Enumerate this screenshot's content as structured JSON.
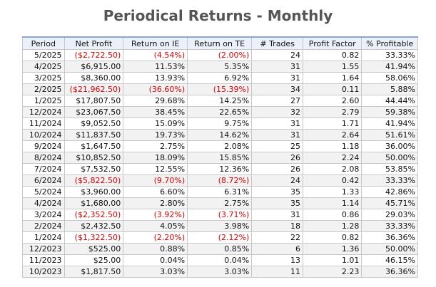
{
  "title": "Periodical Returns - Monthly",
  "colors": {
    "negative": "#e00000",
    "header_bg": "#eaf1fb",
    "title": "#555555"
  },
  "table": {
    "headers": [
      "Period",
      "Net Profit",
      "Return on IE",
      "Return on TE",
      "# Trades",
      "Profit Factor",
      "% Profitable"
    ],
    "rows": [
      [
        "5/2025",
        "($2,722.50)",
        "(4.54%)",
        "(2.00%)",
        "24",
        "0.82",
        "33.33%"
      ],
      [
        "4/2025",
        "$6,915.00",
        "11.53%",
        "5.35%",
        "31",
        "1.55",
        "41.94%"
      ],
      [
        "3/2025",
        "$8,360.00",
        "13.93%",
        "6.92%",
        "31",
        "1.64",
        "58.06%"
      ],
      [
        "2/2025",
        "($21,962.50)",
        "(36.60%)",
        "(15.39%)",
        "34",
        "0.11",
        "5.88%"
      ],
      [
        "1/2025",
        "$17,807.50",
        "29.68%",
        "14.25%",
        "27",
        "2.60",
        "44.44%"
      ],
      [
        "12/2024",
        "$23,067.50",
        "38.45%",
        "22.65%",
        "32",
        "2.79",
        "59.38%"
      ],
      [
        "11/2024",
        "$9,052.50",
        "15.09%",
        "9.75%",
        "31",
        "1.71",
        "41.94%"
      ],
      [
        "10/2024",
        "$11,837.50",
        "19.73%",
        "14.62%",
        "31",
        "2.64",
        "51.61%"
      ],
      [
        "9/2024",
        "$1,647.50",
        "2.75%",
        "2.08%",
        "25",
        "1.18",
        "36.00%"
      ],
      [
        "8/2024",
        "$10,852.50",
        "18.09%",
        "15.85%",
        "26",
        "2.24",
        "50.00%"
      ],
      [
        "7/2024",
        "$7,532.50",
        "12.55%",
        "12.36%",
        "26",
        "2.08",
        "53.85%"
      ],
      [
        "6/2024",
        "($5,822.50)",
        "(9.70%)",
        "(8.72%)",
        "24",
        "0.42",
        "33.33%"
      ],
      [
        "5/2024",
        "$3,960.00",
        "6.60%",
        "6.31%",
        "35",
        "1.33",
        "42.86%"
      ],
      [
        "4/2024",
        "$1,680.00",
        "2.80%",
        "2.75%",
        "35",
        "1.14",
        "45.71%"
      ],
      [
        "3/2024",
        "($2,352.50)",
        "(3.92%)",
        "(3.71%)",
        "31",
        "0.86",
        "29.03%"
      ],
      [
        "2/2024",
        "$2,432.50",
        "4.05%",
        "3.98%",
        "18",
        "1.28",
        "33.33%"
      ],
      [
        "1/2024",
        "($1,322.50)",
        "(2.20%)",
        "(2.12%)",
        "22",
        "0.82",
        "36.36%"
      ],
      [
        "12/2023",
        "$525.00",
        "0.88%",
        "0.85%",
        "6",
        "1.36",
        "50.00%"
      ],
      [
        "11/2023",
        "$25.00",
        "0.04%",
        "0.04%",
        "13",
        "1.01",
        "46.15%"
      ],
      [
        "10/2023",
        "$1,817.50",
        "3.03%",
        "3.03%",
        "11",
        "2.23",
        "36.36%"
      ]
    ]
  }
}
